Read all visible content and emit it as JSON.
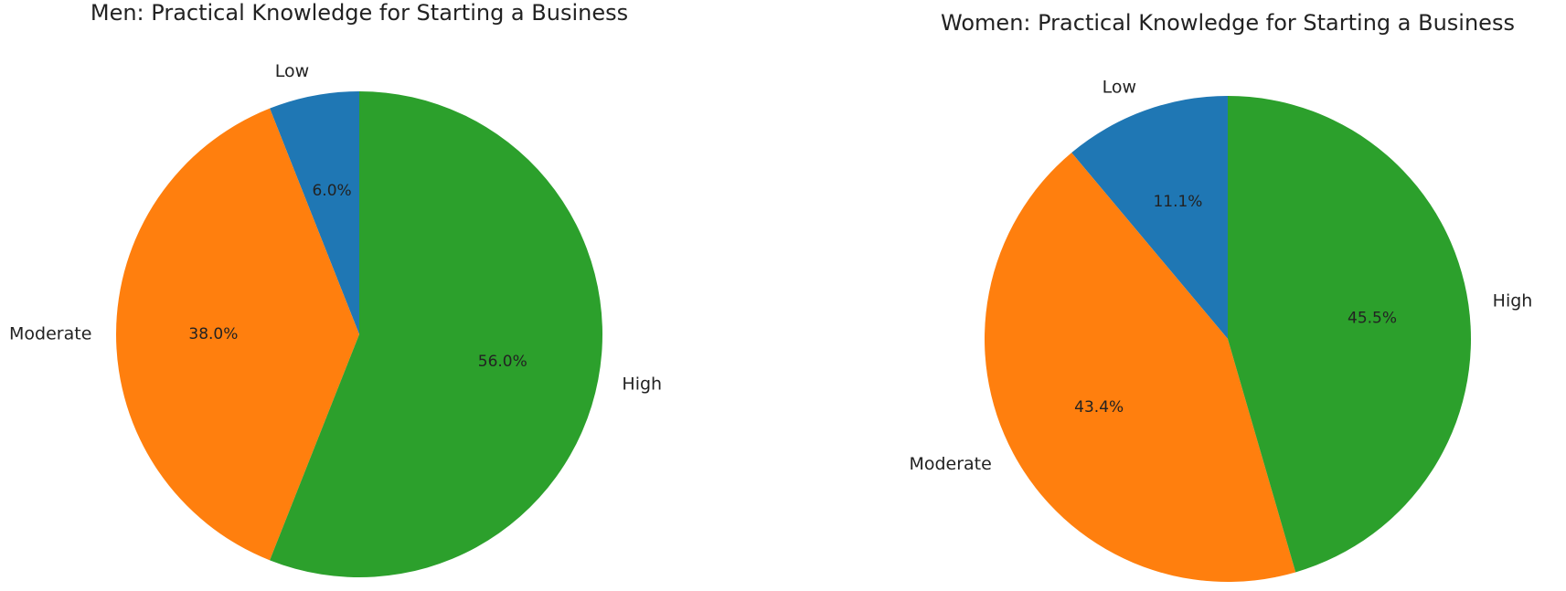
{
  "chart_data": [
    {
      "type": "pie",
      "title": "Men: Practical Knowledge for Starting a Business",
      "categories": [
        "Low",
        "Moderate",
        "High"
      ],
      "values": [
        6.0,
        38.0,
        56.0
      ],
      "value_labels": [
        "6.0%",
        "38.0%",
        "56.0%"
      ],
      "colors": [
        "#1f77b4",
        "#ff7f0e",
        "#2ca02c"
      ]
    },
    {
      "type": "pie",
      "title": "Women: Practical Knowledge for Starting a Business",
      "categories": [
        "Low",
        "Moderate",
        "High"
      ],
      "values": [
        11.1,
        43.4,
        45.5
      ],
      "value_labels": [
        "11.1%",
        "43.4%",
        "45.5%"
      ],
      "colors": [
        "#1f77b4",
        "#ff7f0e",
        "#2ca02c"
      ]
    }
  ]
}
